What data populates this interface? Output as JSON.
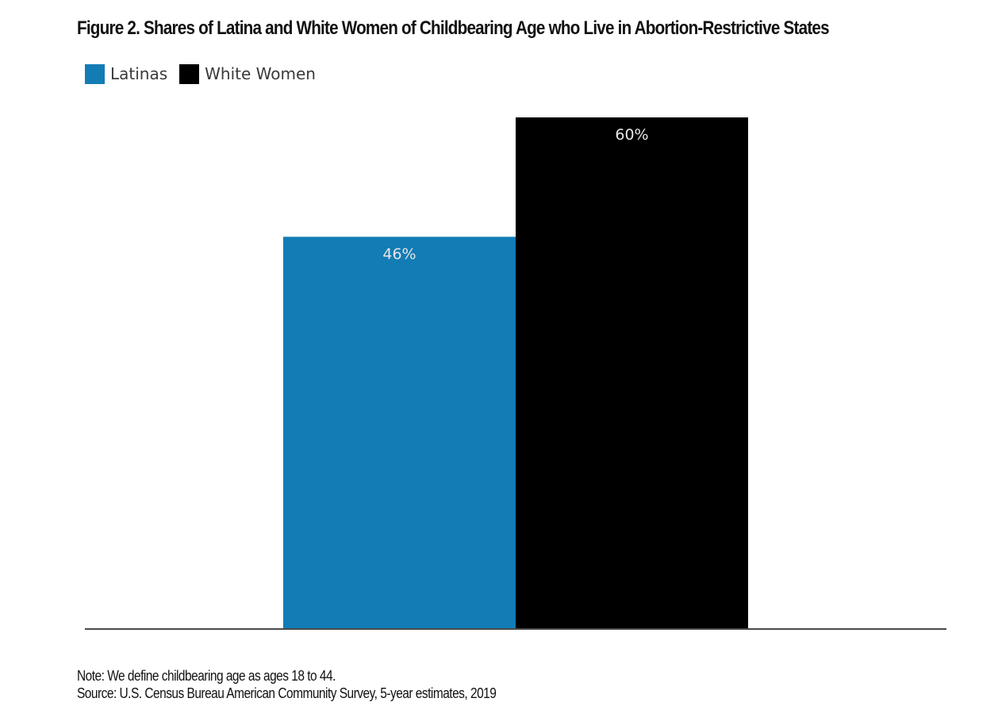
{
  "chart_data": {
    "type": "bar",
    "title": "Figure 2. Shares of Latina and White Women of Childbearing Age who Live in Abortion-Restrictive States",
    "categories": [
      ""
    ],
    "series": [
      {
        "name": "Latinas",
        "values": [
          46
        ],
        "label": "46%",
        "color": "#137cb5"
      },
      {
        "name": "White Women",
        "values": [
          60
        ],
        "label": "60%",
        "color": "#000000"
      }
    ],
    "xlabel": "",
    "ylabel": "",
    "ylim": [
      0,
      60
    ],
    "grid": false,
    "legend": "top-left",
    "axis_color": "#4a4a4a",
    "label_color": "#e6e6e6"
  },
  "footer": {
    "note": "Note: We define childbearing age as ages 18 to 44.",
    "source": "Source: U.S. Census Bureau American Community Survey, 5-year estimates, 2019"
  }
}
